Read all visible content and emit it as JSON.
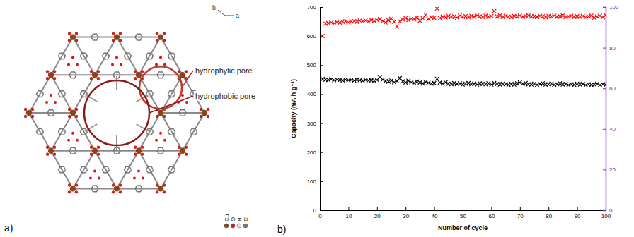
{
  "diagram": {
    "panel_label": "a)",
    "pores": [
      {
        "label": "hydrophylic pore"
      },
      {
        "label": "hydrophobic pore"
      }
    ],
    "axis_labels": [
      "b",
      "a"
    ],
    "atom_legend": [
      "Cu",
      "O",
      "H",
      "C"
    ]
  },
  "chart_data": {
    "type": "scatter",
    "panel_label": "b)",
    "x_label": "Number of cycle",
    "y_label": "Capacity (mA h g⁻¹)",
    "x": [
      1,
      2,
      3,
      4,
      5,
      6,
      7,
      8,
      9,
      10,
      11,
      12,
      13,
      14,
      15,
      16,
      17,
      18,
      19,
      20,
      21,
      22,
      23,
      24,
      25,
      26,
      27,
      28,
      29,
      30,
      31,
      32,
      33,
      34,
      35,
      36,
      37,
      38,
      39,
      40,
      41,
      42,
      43,
      44,
      45,
      46,
      47,
      48,
      49,
      50,
      51,
      52,
      53,
      54,
      55,
      56,
      57,
      58,
      59,
      60,
      61,
      62,
      63,
      64,
      65,
      66,
      67,
      68,
      69,
      70,
      71,
      72,
      73,
      74,
      75,
      76,
      77,
      78,
      79,
      80,
      81,
      82,
      83,
      84,
      85,
      86,
      87,
      88,
      89,
      90,
      91,
      92,
      93,
      94,
      95,
      96,
      97,
      98,
      99,
      100
    ],
    "xlim": [
      0,
      100
    ],
    "xticks": [
      0,
      10,
      20,
      30,
      40,
      50,
      60,
      70,
      80,
      90,
      100
    ],
    "ylim": [
      0,
      700
    ],
    "yticks": [
      0,
      100,
      200,
      300,
      400,
      500,
      600,
      700
    ],
    "y2lim": [
      0,
      100
    ],
    "y2ticks": [
      0,
      20,
      40,
      60,
      80,
      100
    ],
    "grid": false,
    "series": [
      {
        "color": "#000000",
        "marker": "x",
        "values": [
          452,
          450,
          449,
          451,
          448,
          450,
          449,
          447,
          450,
          448,
          449,
          447,
          450,
          448,
          446,
          449,
          447,
          448,
          446,
          449,
          458,
          450,
          445,
          443,
          447,
          441,
          445,
          455,
          444,
          440,
          446,
          441,
          438,
          443,
          440,
          437,
          442,
          439,
          436,
          438,
          453,
          440,
          437,
          441,
          436,
          434,
          438,
          435,
          437,
          433,
          436,
          438,
          434,
          436,
          433,
          437,
          435,
          434,
          437,
          433,
          438,
          435,
          433,
          436,
          434,
          432,
          435,
          433,
          437,
          440,
          436,
          438,
          434,
          433,
          436,
          432,
          435,
          437,
          433,
          434,
          436,
          432,
          434,
          437,
          433,
          435,
          431,
          434,
          432,
          436,
          433,
          435,
          431,
          434,
          432,
          433,
          436,
          431,
          434,
          432
        ]
      },
      {
        "color": "#ff0000",
        "marker": "x",
        "axis": "y2",
        "values": [
          85.7,
          91.8,
          92.1,
          92.4,
          92.0,
          92.6,
          92.3,
          92.8,
          93.0,
          92.5,
          92.9,
          93.1,
          92.7,
          93.3,
          93.0,
          93.4,
          92.9,
          93.6,
          93.2,
          93.7,
          94.0,
          93.1,
          92.4,
          93.5,
          94.2,
          92.8,
          90.4,
          93.0,
          93.9,
          94.6,
          93.6,
          94.3,
          94.0,
          94.8,
          93.3,
          94.5,
          96.1,
          94.2,
          95.0,
          94.7,
          99.3,
          94.6,
          95.3,
          94.9,
          95.6,
          95.1,
          95.4,
          94.8,
          95.8,
          95.2,
          95.5,
          95.0,
          95.7,
          95.3,
          95.9,
          95.4,
          95.1,
          95.8,
          95.2,
          95.6,
          98.0,
          95.4,
          95.9,
          95.1,
          95.7,
          95.3,
          95.0,
          95.6,
          95.4,
          95.8,
          95.2,
          95.6,
          95.9,
          95.3,
          95.5,
          95.1,
          95.7,
          95.4,
          95.0,
          95.6,
          95.3,
          95.8,
          95.2,
          95.5,
          95.9,
          95.0,
          95.4,
          95.7,
          95.1,
          95.5,
          95.2,
          95.6,
          94.9,
          95.4,
          95.8,
          94.8,
          95.3,
          95.7,
          95.0,
          96.0
        ]
      }
    ]
  }
}
